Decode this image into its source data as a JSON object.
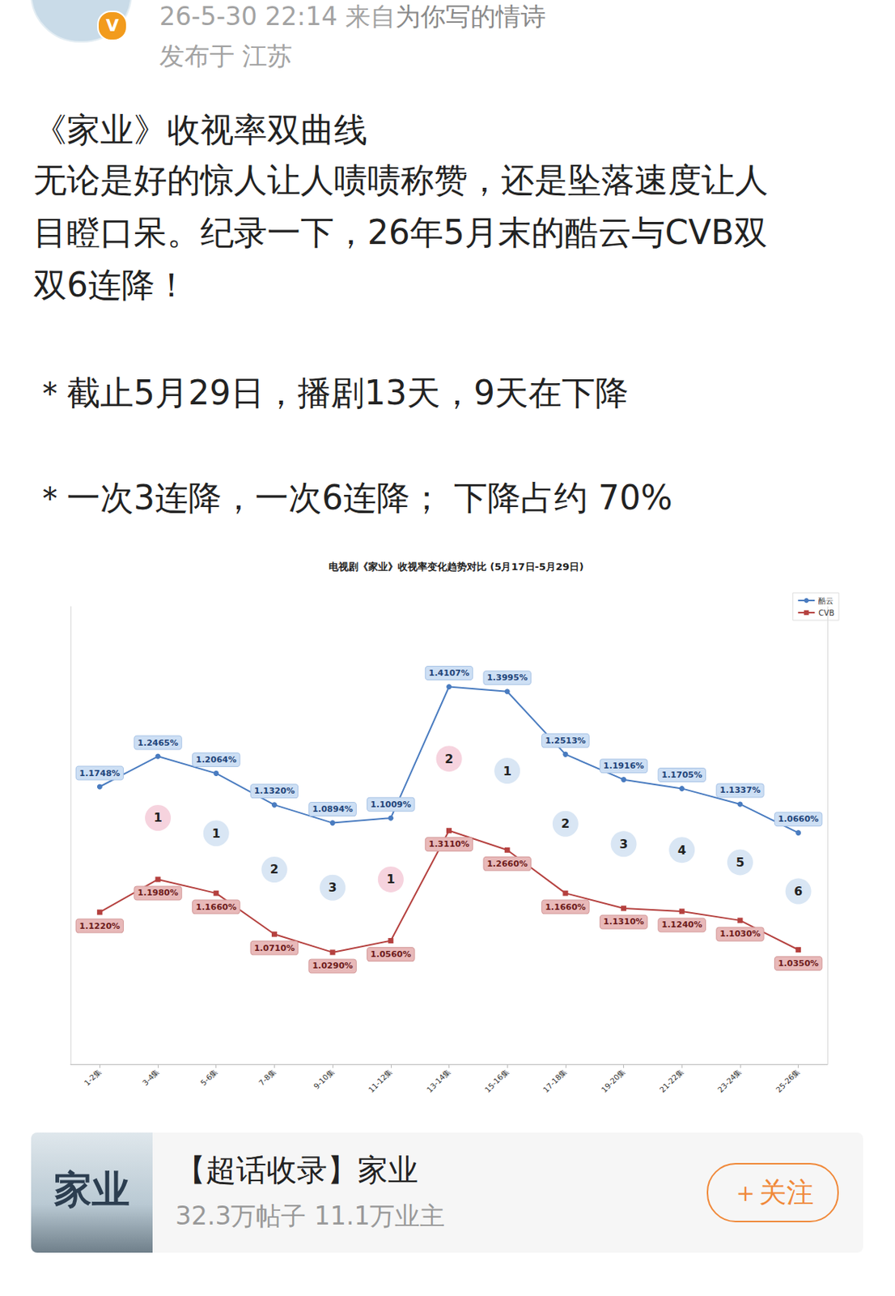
{
  "header": {
    "time": "26-5-30 22:14",
    "source_prefix": "来自",
    "source": "为你写的情诗",
    "location": "发布于 江苏",
    "badge": "V"
  },
  "post": {
    "title": "《家业》收视率双曲线",
    "body": "无论是好的惊人让人啧啧称赞，还是坠落速度让人目瞪口呆。纪录一下，26年5月末的酷云与CVB双双6连降！",
    "bullets": [
      "＊截止5月29日，播剧13天，9天在下降",
      "＊一次3连降，一次6连降； 下降占约 70%"
    ]
  },
  "chart_data": {
    "type": "line",
    "title": "电视剧《家业》收视率变化趋势对比 (5月17日-5月29日)",
    "categories": [
      "1-2集",
      "3-4集",
      "5-6集",
      "7-8集",
      "9-10集",
      "11-12集",
      "13-14集",
      "15-16集",
      "17-18集",
      "19-20集",
      "21-22集",
      "23-24集",
      "25-26集"
    ],
    "series": [
      {
        "name": "酷云",
        "color": "#4a7cc0",
        "marker": "circle",
        "values": [
          1.1748,
          1.2465,
          1.2064,
          1.132,
          1.0894,
          1.1009,
          1.4107,
          1.3995,
          1.2513,
          1.1916,
          1.1705,
          1.1337,
          1.066
        ],
        "value_labels": [
          "1.1748%",
          "1.2465%",
          "1.2064%",
          "1.1320%",
          "1.0894%",
          "1.1009%",
          "1.4107%",
          "1.3995%",
          "1.2513%",
          "1.1916%",
          "1.1705%",
          "1.1337%",
          "1.0660%"
        ],
        "trends": [
          null,
          "上升趋势",
          "下降趋势",
          "下降趋势",
          "下降趋势",
          "上升趋势",
          "上升趋势",
          "下降趋势",
          "下降趋势",
          "下降趋势",
          "下降趋势",
          "下降趋势",
          "下降趋势"
        ]
      },
      {
        "name": "CVB",
        "color": "#b5413f",
        "marker": "square",
        "axis": "y2",
        "values": [
          1.122,
          1.198,
          1.166,
          1.071,
          1.029,
          1.056,
          1.311,
          1.266,
          1.166,
          1.131,
          1.124,
          1.103,
          1.035
        ],
        "value_labels": [
          "1.1220%",
          "1.1980%",
          "1.1660%",
          "1.0710%",
          "1.0290%",
          "1.0560%",
          "1.3110%",
          "1.2660%",
          "1.1660%",
          "1.1310%",
          "1.1240%",
          "1.1030%",
          "1.0350%"
        ],
        "trends": [
          null,
          "上升趋势",
          "下降趋势",
          "下降趋势",
          "下降趋势",
          "上升趋势",
          "上升趋势",
          "下降趋势",
          "下降趋势",
          "下降趋势",
          "下降趋势",
          "下降趋势",
          "下降趋势"
        ]
      }
    ],
    "streaks": [
      null,
      1,
      1,
      2,
      3,
      1,
      2,
      1,
      2,
      3,
      4,
      5,
      6
    ],
    "ylim": [
      0.52,
      1.6
    ],
    "y2lim": [
      0.77,
      1.83
    ],
    "legend": "upper right",
    "data_labels": true,
    "tick_labels": "x",
    "grid": false
  },
  "card": {
    "thumb": "家业",
    "title": "【超话收录】家业",
    "stats": "32.3万帖子 11.1万业主",
    "button": "＋关注"
  }
}
